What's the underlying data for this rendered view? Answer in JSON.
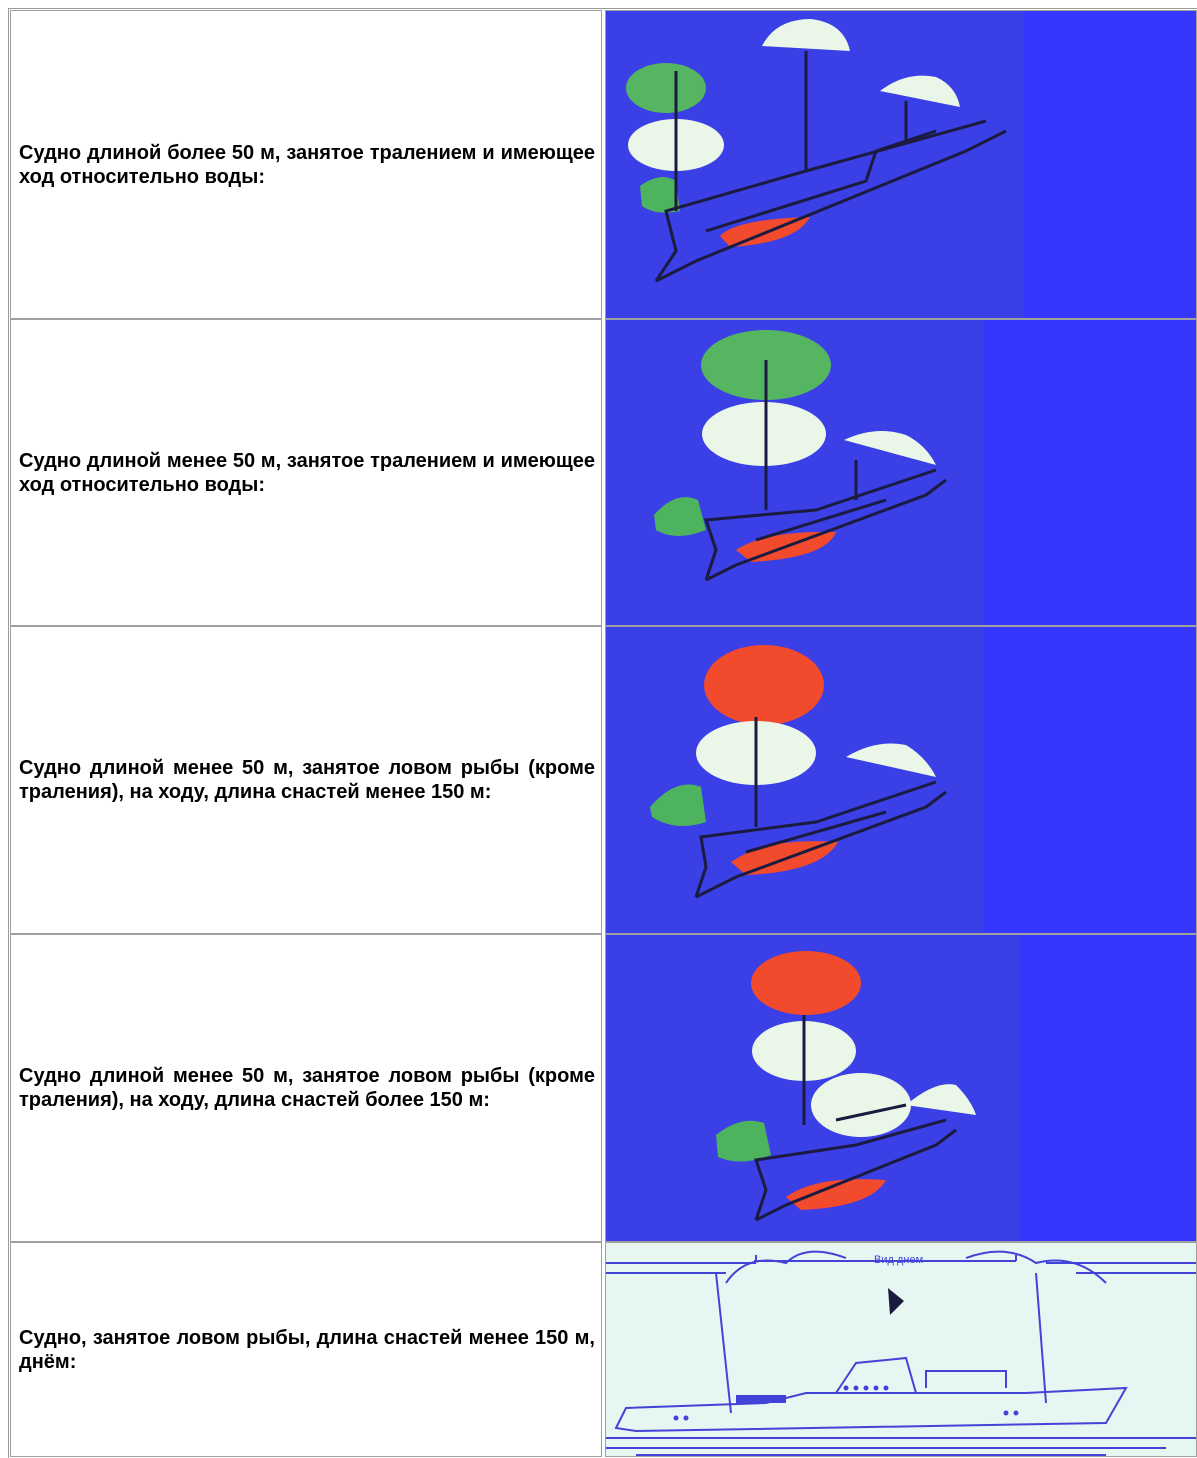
{
  "table": {
    "rows": [
      {
        "text": "Судно длиной более 50 м, занятое тралением и имеющее ход относительно воды:"
      },
      {
        "text": "Судно длиной менее 50 м, занятое тралением и имеющее ход относительно воды:"
      },
      {
        "text": "Судно длиной менее 50 м, занятое ловом рыбы (кроме траления), на ходу, длина снастей менее 150 м:"
      },
      {
        "text": "Судно длиной менее 50 м, занятое ловом рыбы (кроме траления), на ходу, длина снастей более 150 м:"
      },
      {
        "text": "Судно, занятое ловом рыбы, длина снастей менее 150 м, днём:",
        "image_caption": "Вид днем"
      }
    ]
  }
}
